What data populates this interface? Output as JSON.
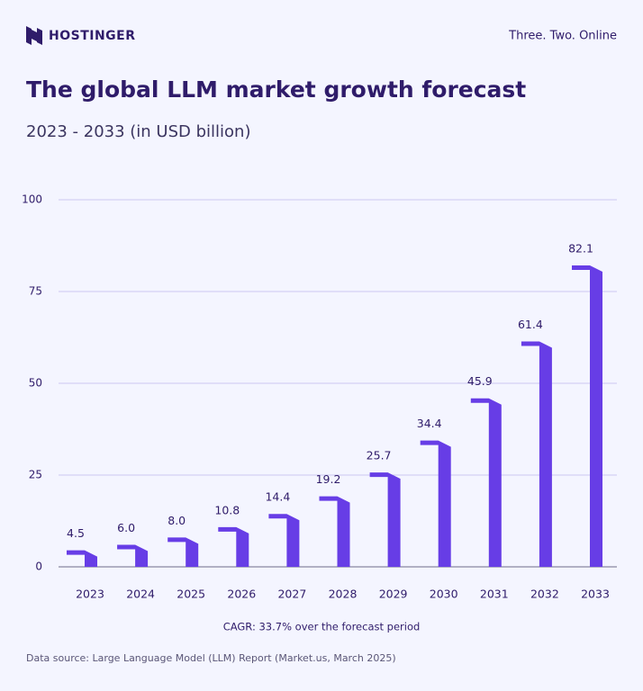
{
  "header": {
    "brand": "HOSTINGER",
    "tagline": "Three. Two. Online"
  },
  "chart_data": {
    "type": "bar",
    "title": "The global LLM market growth forecast",
    "subtitle": "2023 - 2033 (in USD billion)",
    "categories": [
      "2023",
      "2024",
      "2025",
      "2026",
      "2027",
      "2028",
      "2029",
      "2030",
      "2031",
      "2032",
      "2033"
    ],
    "values": [
      4.5,
      6.0,
      8.0,
      10.8,
      14.4,
      19.2,
      25.7,
      34.4,
      45.9,
      61.4,
      82.1
    ],
    "value_labels": [
      "4.5",
      "6.0",
      "8.0",
      "10.8",
      "14.4",
      "19.2",
      "25.7",
      "34.4",
      "45.9",
      "61.4",
      "82.1"
    ],
    "color": "#673de6",
    "ylim": [
      0,
      100
    ],
    "yticks": [
      0,
      25,
      50,
      75,
      100
    ],
    "grid": true,
    "annotation": "CAGR: 33.7% over the forecast period",
    "source": "Data source: Large Language Model (LLM) Report (Market.us, March 2025)"
  }
}
